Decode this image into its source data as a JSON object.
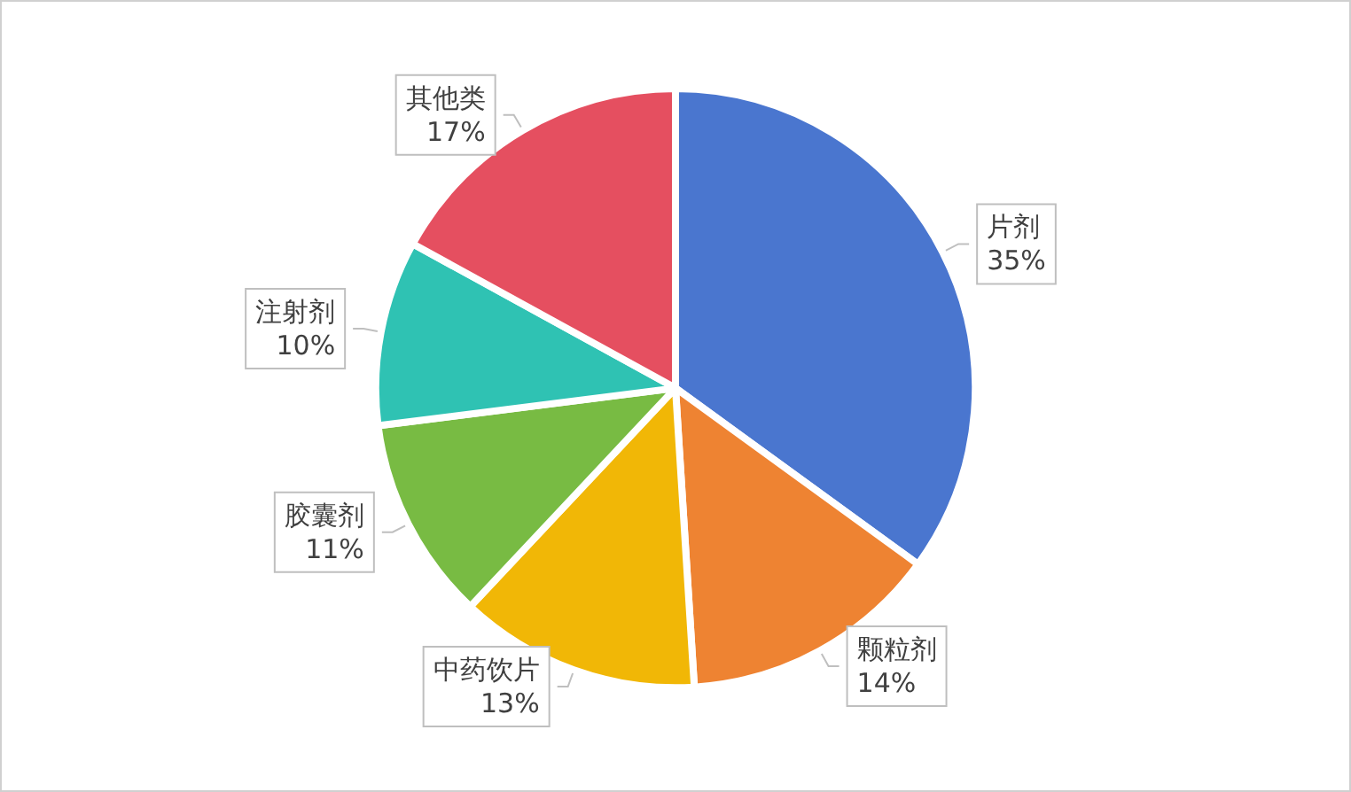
{
  "chart_data": {
    "type": "pie",
    "categories": [
      "片剂",
      "颗粒剂",
      "中药饮片",
      "胶囊剂",
      "注射剂",
      "其他类"
    ],
    "values": [
      35,
      14,
      13,
      11,
      10,
      17
    ],
    "value_labels": [
      "35%",
      "14%",
      "13%",
      "11%",
      "10%",
      "17%"
    ],
    "colors": [
      "#4a76cf",
      "#ee8332",
      "#f1b706",
      "#78bb43",
      "#2fc2b3",
      "#e54f60"
    ],
    "legend": false
  }
}
